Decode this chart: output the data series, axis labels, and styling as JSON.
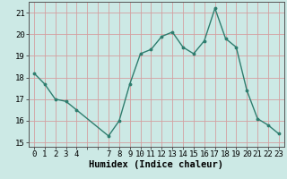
{
  "x": [
    0,
    1,
    2,
    3,
    4,
    7,
    8,
    9,
    10,
    11,
    12,
    13,
    14,
    15,
    16,
    17,
    18,
    19,
    20,
    21,
    22,
    23
  ],
  "y": [
    18.2,
    17.7,
    17.0,
    16.9,
    16.5,
    15.3,
    16.0,
    17.7,
    19.1,
    19.3,
    19.9,
    20.1,
    19.4,
    19.1,
    19.7,
    21.2,
    19.8,
    19.4,
    17.4,
    16.1,
    15.8,
    15.4
  ],
  "line_color": "#2e7d6e",
  "marker_color": "#2e7d6e",
  "bg_color": "#cce9e5",
  "grid_color": "#d4a0a0",
  "xlabel": "Humidex (Indice chaleur)",
  "ylim": [
    14.8,
    21.5
  ],
  "yticks": [
    15,
    16,
    17,
    18,
    19,
    20,
    21
  ],
  "xlabel_fontsize": 7.5,
  "tick_fontsize": 6.5,
  "linewidth": 1.0,
  "markersize": 3.5
}
